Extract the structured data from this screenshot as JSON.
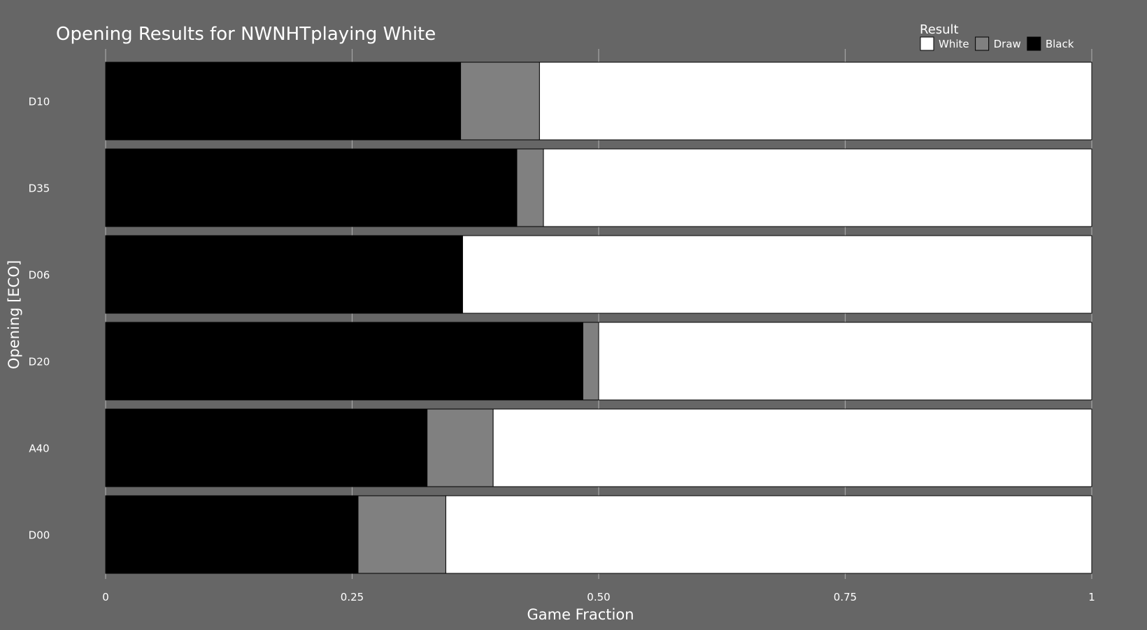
{
  "chart_data": {
    "type": "bar",
    "orientation": "horizontal",
    "stacked": true,
    "title": "Opening Results for NWNHTplaying White",
    "xlabel": "Game Fraction",
    "ylabel": "Opening [ECO]",
    "xlim": [
      0,
      1
    ],
    "x_ticks": [
      "0",
      "0.25",
      "0.50",
      "0.75",
      "1"
    ],
    "x_tick_values": [
      0,
      0.25,
      0.5,
      0.75,
      1
    ],
    "grid": true,
    "legend": {
      "title": "Result",
      "placement": "top-right",
      "entries": [
        {
          "label": "White",
          "color": "#ffffff"
        },
        {
          "label": "Draw",
          "color": "#808080"
        },
        {
          "label": "Black",
          "color": "#000000"
        }
      ]
    },
    "categories": [
      "D10",
      "D35",
      "D06",
      "D20",
      "A40",
      "D00"
    ],
    "series": [
      {
        "name": "Black",
        "color": "#000000",
        "values": [
          0.36,
          0.417,
          0.362,
          0.484,
          0.326,
          0.256
        ]
      },
      {
        "name": "Draw",
        "color": "#808080",
        "values": [
          0.08,
          0.027,
          0.0,
          0.016,
          0.067,
          0.089
        ]
      },
      {
        "name": "White",
        "color": "#ffffff",
        "values": [
          0.56,
          0.556,
          0.638,
          0.5,
          0.607,
          0.655
        ]
      }
    ]
  }
}
